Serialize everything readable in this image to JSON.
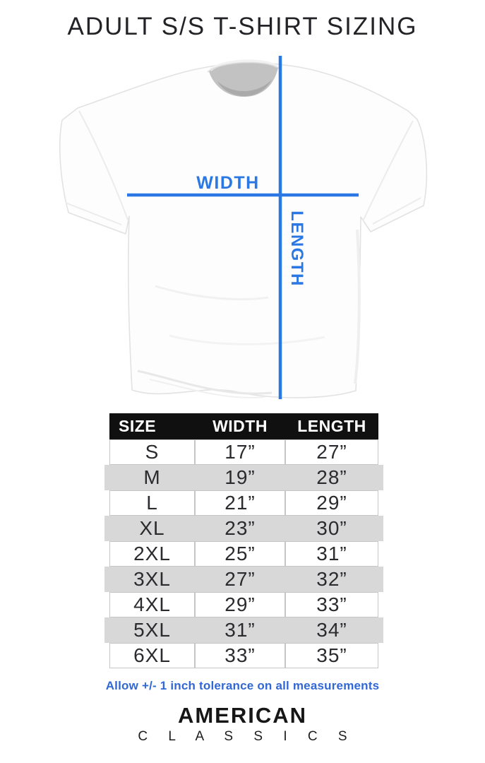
{
  "title": {
    "text": "ADULT S/S T-SHIRT SIZING"
  },
  "diagram": {
    "width_label": "WIDTH",
    "length_label": "LENGTH",
    "line_color": "#2b78e4"
  },
  "size_table": {
    "columns": [
      "SIZE",
      "WIDTH",
      "LENGTH"
    ],
    "rows": [
      [
        "S",
        "17”",
        "27”"
      ],
      [
        "M",
        "19”",
        "28”"
      ],
      [
        "L",
        "21”",
        "29”"
      ],
      [
        "XL",
        "23”",
        "30”"
      ],
      [
        "2XL",
        "25”",
        "31”"
      ],
      [
        "3XL",
        "27”",
        "32”"
      ],
      [
        "4XL",
        "29”",
        "33”"
      ],
      [
        "5XL",
        "31”",
        "34”"
      ],
      [
        "6XL",
        "33”",
        "35”"
      ]
    ],
    "header_bg": "#101010",
    "header_text_color": "#ffffff",
    "alt_row_color": "#d8d8d8"
  },
  "note": {
    "text": "Allow +/- 1 inch tolerance on all measurements",
    "color": "#3168d6"
  },
  "brand": {
    "line1": "AMERICAN",
    "line2": "C L A S S I C S"
  }
}
